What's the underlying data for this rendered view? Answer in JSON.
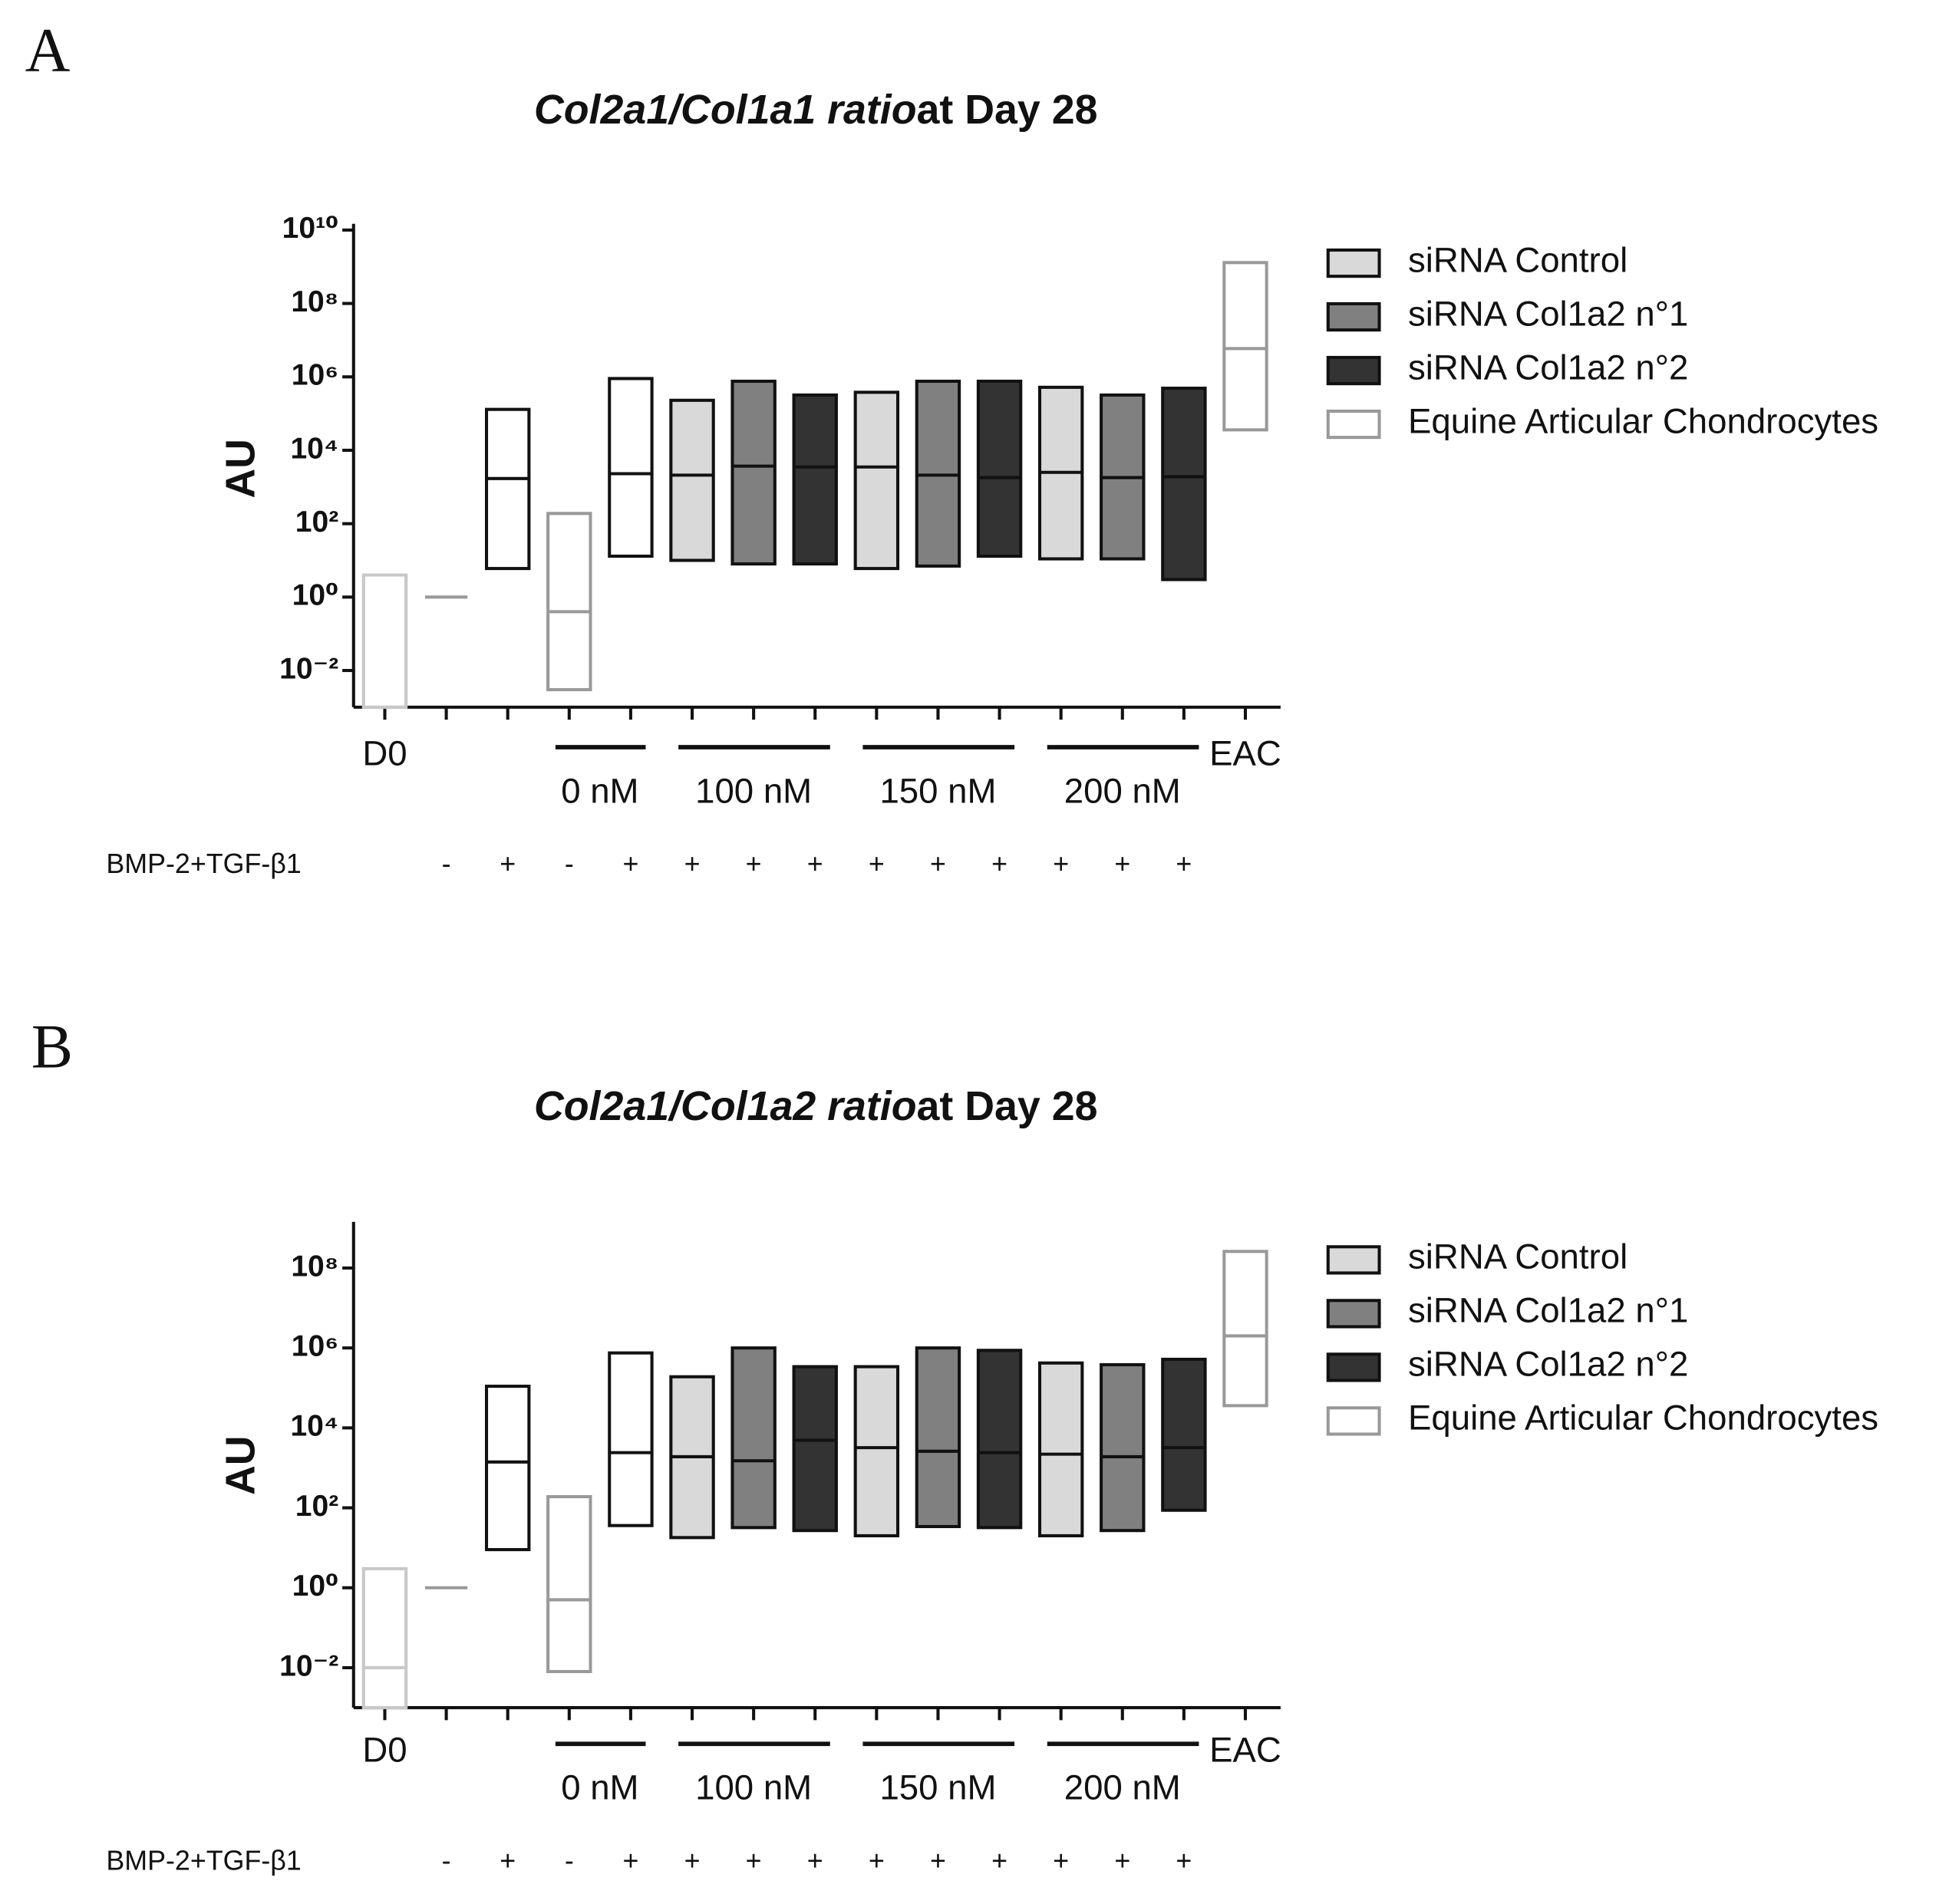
{
  "chart_data": [
    {
      "type": "floating_bar",
      "panel": "A",
      "title": [
        "Col2a1/Col1a1 ratio",
        "at Day 28"
      ],
      "ylabel": "AU",
      "log_scale": true,
      "ylim": [
        0.001,
        10000000000
      ],
      "yticks": [
        {
          "value": 0.01,
          "label": "10⁻²"
        },
        {
          "value": 1,
          "label": "10⁰"
        },
        {
          "value": 100,
          "label": "10²"
        },
        {
          "value": 10000,
          "label": "10⁴"
        },
        {
          "value": 1000000,
          "label": "10⁶"
        },
        {
          "value": 100000000,
          "label": "10⁸"
        },
        {
          "value": 10000000000,
          "label": "10¹⁰"
        }
      ],
      "groups": [
        {
          "label": "D0",
          "span": 1
        },
        {
          "label": null,
          "span": 2
        },
        {
          "label": "0 nM",
          "span": 2
        },
        {
          "label": "100 nM",
          "span": 3
        },
        {
          "label": "150 nM",
          "span": 3
        },
        {
          "label": "200 nM",
          "span": 3
        },
        {
          "label": "EAC",
          "span": 1
        }
      ],
      "treatment_label": "BMP-2+TGF-β1",
      "treatment": [
        null,
        "-",
        "+",
        "-",
        "+",
        "+",
        "+",
        "+",
        "+",
        "+",
        "+",
        "+",
        "+",
        "+",
        null
      ],
      "legend": [
        {
          "name": "siRNA Control",
          "fill": "#d9d9d9",
          "stroke": "#111111"
        },
        {
          "name": "siRNA Col1a2 n°1",
          "fill": "#808080",
          "stroke": "#111111"
        },
        {
          "name": "siRNA Col1a2 n°2",
          "fill": "#333333",
          "stroke": "#111111"
        },
        {
          "name": "Equine Articular Chondrocytes",
          "fill": "#ffffff",
          "stroke": "#999999"
        }
      ],
      "columns": [
        {
          "fill": "#ffffff",
          "stroke": "#c8c8c8",
          "min": 0.001,
          "median": 0.001,
          "max": 4
        },
        {
          "fill": "none",
          "stroke": "#999999",
          "min": 1,
          "median": 1,
          "max": 1
        },
        {
          "fill": "#ffffff",
          "stroke": "#111111",
          "min": 6,
          "median": 1700,
          "max": 130000
        },
        {
          "fill": "#ffffff",
          "stroke": "#999999",
          "min": 0.003,
          "median": 0.4,
          "max": 190
        },
        {
          "fill": "#ffffff",
          "stroke": "#111111",
          "min": 13,
          "median": 2300,
          "max": 900000
        },
        {
          "fill": "#d9d9d9",
          "stroke": "#111111",
          "min": 10,
          "median": 2100,
          "max": 230000
        },
        {
          "fill": "#808080",
          "stroke": "#111111",
          "min": 8,
          "median": 3700,
          "max": 760000
        },
        {
          "fill": "#333333",
          "stroke": "#111111",
          "min": 8,
          "median": 3500,
          "max": 320000
        },
        {
          "fill": "#d9d9d9",
          "stroke": "#111111",
          "min": 6,
          "median": 3500,
          "max": 380000
        },
        {
          "fill": "#808080",
          "stroke": "#111111",
          "min": 7,
          "median": 2100,
          "max": 760000
        },
        {
          "fill": "#333333",
          "stroke": "#111111",
          "min": 13,
          "median": 1800,
          "max": 760000
        },
        {
          "fill": "#d9d9d9",
          "stroke": "#111111",
          "min": 11,
          "median": 2500,
          "max": 520000
        },
        {
          "fill": "#808080",
          "stroke": "#111111",
          "min": 11,
          "median": 1800,
          "max": 320000
        },
        {
          "fill": "#333333",
          "stroke": "#111111",
          "min": 3,
          "median": 1900,
          "max": 490000
        },
        {
          "fill": "#ffffff",
          "stroke": "#999999",
          "min": 36000,
          "median": 5900000,
          "max": 1300000000
        }
      ]
    },
    {
      "type": "floating_bar",
      "panel": "B",
      "title": [
        "Col2a1/Col1a2 ratio",
        "at Day 28"
      ],
      "ylabel": "AU",
      "log_scale": true,
      "ylim": [
        0.001,
        1000000000
      ],
      "yticks": [
        {
          "value": 0.01,
          "label": "10⁻²"
        },
        {
          "value": 1,
          "label": "10⁰"
        },
        {
          "value": 100,
          "label": "10²"
        },
        {
          "value": 10000,
          "label": "10⁴"
        },
        {
          "value": 1000000,
          "label": "10⁶"
        },
        {
          "value": 100000000,
          "label": "10⁸"
        }
      ],
      "groups": [
        {
          "label": "D0",
          "span": 1
        },
        {
          "label": null,
          "span": 2
        },
        {
          "label": "0 nM",
          "span": 2
        },
        {
          "label": "100 nM",
          "span": 3
        },
        {
          "label": "150 nM",
          "span": 3
        },
        {
          "label": "200 nM",
          "span": 3
        },
        {
          "label": "EAC",
          "span": 1
        }
      ],
      "treatment_label": "BMP-2+TGF-β1",
      "treatment": [
        null,
        "-",
        "+",
        "-",
        "+",
        "+",
        "+",
        "+",
        "+",
        "+",
        "+",
        "+",
        "+",
        "+",
        null
      ],
      "legend": [
        {
          "name": "siRNA Control",
          "fill": "#d9d9d9",
          "stroke": "#111111"
        },
        {
          "name": "siRNA Col1a2 n°1",
          "fill": "#808080",
          "stroke": "#111111"
        },
        {
          "name": "siRNA Col1a2 n°2",
          "fill": "#333333",
          "stroke": "#111111"
        },
        {
          "name": "Equine Articular Chondrocytes",
          "fill": "#ffffff",
          "stroke": "#999999"
        }
      ],
      "columns": [
        {
          "fill": "#ffffff",
          "stroke": "#c8c8c8",
          "min": 0.001,
          "median": 0.01,
          "max": 3
        },
        {
          "fill": "none",
          "stroke": "#999999",
          "min": 1,
          "median": 1,
          "max": 1
        },
        {
          "fill": "#ffffff",
          "stroke": "#111111",
          "min": 9,
          "median": 1400,
          "max": 110000
        },
        {
          "fill": "#ffffff",
          "stroke": "#999999",
          "min": 0.008,
          "median": 0.5,
          "max": 190
        },
        {
          "fill": "#ffffff",
          "stroke": "#111111",
          "min": 36,
          "median": 2400,
          "max": 750000
        },
        {
          "fill": "#d9d9d9",
          "stroke": "#111111",
          "min": 18,
          "median": 1900,
          "max": 190000
        },
        {
          "fill": "#808080",
          "stroke": "#111111",
          "min": 32,
          "median": 1500,
          "max": 1000000
        },
        {
          "fill": "#333333",
          "stroke": "#111111",
          "min": 27,
          "median": 4900,
          "max": 340000
        },
        {
          "fill": "#d9d9d9",
          "stroke": "#111111",
          "min": 20,
          "median": 3200,
          "max": 340000
        },
        {
          "fill": "#808080",
          "stroke": "#111111",
          "min": 34,
          "median": 2600,
          "max": 1000000
        },
        {
          "fill": "#333333",
          "stroke": "#111111",
          "min": 32,
          "median": 2400,
          "max": 870000
        },
        {
          "fill": "#d9d9d9",
          "stroke": "#111111",
          "min": 20,
          "median": 2200,
          "max": 420000
        },
        {
          "fill": "#808080",
          "stroke": "#111111",
          "min": 27,
          "median": 1900,
          "max": 380000
        },
        {
          "fill": "#333333",
          "stroke": "#111111",
          "min": 87,
          "median": 3200,
          "max": 520000
        },
        {
          "fill": "#ffffff",
          "stroke": "#999999",
          "min": 36000,
          "median": 2000000,
          "max": 260000000
        }
      ]
    }
  ]
}
